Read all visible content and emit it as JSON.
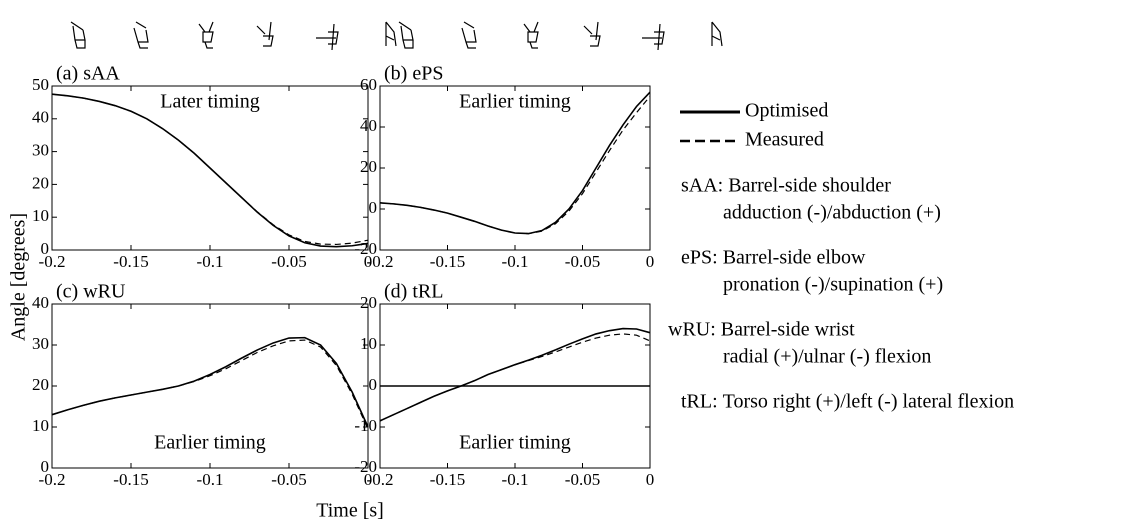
{
  "chart_data": [
    {
      "type": "line",
      "title": "(a) sAA",
      "annotation": "Later timing",
      "x": [
        -0.2,
        -0.19,
        -0.18,
        -0.17,
        -0.16,
        -0.15,
        -0.14,
        -0.13,
        -0.12,
        -0.11,
        -0.1,
        -0.09,
        -0.08,
        -0.07,
        -0.06,
        -0.05,
        -0.04,
        -0.03,
        -0.02,
        -0.01,
        0
      ],
      "xlim": [
        -0.2,
        0
      ],
      "xticks": [
        -0.2,
        -0.15,
        -0.1,
        -0.05,
        0
      ],
      "ylim": [
        0,
        50
      ],
      "yticks": [
        0,
        10,
        20,
        30,
        40,
        50
      ],
      "series": [
        {
          "style": "solid",
          "values": [
            47.5,
            47,
            46.3,
            45.3,
            44,
            42.3,
            40,
            37,
            33.5,
            29.5,
            25,
            20.5,
            16,
            11.5,
            7.5,
            4.3,
            2.2,
            1.2,
            1.0,
            1.3,
            2.0
          ]
        },
        {
          "style": "dashed",
          "values": [
            47.5,
            47,
            46.3,
            45.3,
            44,
            42.3,
            40,
            37,
            33.5,
            29.5,
            25,
            20.5,
            16,
            11.6,
            7.7,
            4.6,
            2.6,
            1.8,
            1.7,
            2.1,
            3.0
          ]
        }
      ]
    },
    {
      "type": "line",
      "title": "(b) ePS",
      "annotation": "Earlier timing",
      "x": [
        -0.2,
        -0.19,
        -0.18,
        -0.17,
        -0.16,
        -0.15,
        -0.14,
        -0.13,
        -0.12,
        -0.11,
        -0.1,
        -0.09,
        -0.08,
        -0.07,
        -0.06,
        -0.05,
        -0.04,
        -0.03,
        -0.02,
        -0.01,
        0
      ],
      "xlim": [
        -0.2,
        0
      ],
      "xticks": [
        -0.2,
        -0.15,
        -0.1,
        -0.05,
        0
      ],
      "ylim": [
        -20,
        60
      ],
      "yticks": [
        -20,
        0,
        20,
        40,
        60
      ],
      "series": [
        {
          "style": "solid",
          "values": [
            3,
            2.5,
            1.8,
            0.8,
            -0.5,
            -2,
            -4,
            -6,
            -8.3,
            -10.3,
            -11.7,
            -12,
            -10.5,
            -6.5,
            0,
            9,
            20,
            31,
            41,
            50,
            57
          ]
        },
        {
          "style": "dashed",
          "values": [
            3,
            2.5,
            1.8,
            0.8,
            -0.5,
            -2,
            -4,
            -6,
            -8.3,
            -10.3,
            -11.7,
            -12,
            -10.8,
            -7.2,
            -1,
            7.5,
            18,
            28.5,
            38.5,
            47,
            55
          ]
        }
      ]
    },
    {
      "type": "line",
      "title": "(c) wRU",
      "annotation": "Earlier timing",
      "x": [
        -0.2,
        -0.19,
        -0.18,
        -0.17,
        -0.16,
        -0.15,
        -0.14,
        -0.13,
        -0.12,
        -0.11,
        -0.1,
        -0.09,
        -0.08,
        -0.07,
        -0.06,
        -0.05,
        -0.04,
        -0.03,
        -0.02,
        -0.01,
        0
      ],
      "xlim": [
        -0.2,
        0
      ],
      "xticks": [
        -0.2,
        -0.15,
        -0.1,
        -0.05,
        0
      ],
      "ylim": [
        0,
        40
      ],
      "yticks": [
        0,
        10,
        20,
        30,
        40
      ],
      "series": [
        {
          "style": "solid",
          "values": [
            13,
            14.2,
            15.3,
            16.3,
            17.1,
            17.8,
            18.5,
            19.2,
            20,
            21.2,
            22.8,
            24.7,
            26.8,
            28.8,
            30.5,
            31.7,
            31.8,
            30,
            25.5,
            18.5,
            10
          ]
        },
        {
          "style": "dashed",
          "values": [
            13,
            14.2,
            15.3,
            16.3,
            17.1,
            17.8,
            18.5,
            19.2,
            20,
            21.1,
            22.5,
            24.2,
            26.2,
            28.2,
            29.8,
            31,
            31.2,
            29.5,
            25,
            18,
            9.5
          ]
        }
      ]
    },
    {
      "type": "line",
      "title": "(d) tRL",
      "annotation": "Earlier timing",
      "hline": 0,
      "x": [
        -0.2,
        -0.19,
        -0.18,
        -0.17,
        -0.16,
        -0.15,
        -0.14,
        -0.13,
        -0.12,
        -0.11,
        -0.1,
        -0.09,
        -0.08,
        -0.07,
        -0.06,
        -0.05,
        -0.04,
        -0.03,
        -0.02,
        -0.01,
        0
      ],
      "xlim": [
        -0.2,
        0
      ],
      "xticks": [
        -0.2,
        -0.15,
        -0.1,
        -0.05,
        0
      ],
      "ylim": [
        -20,
        20
      ],
      "yticks": [
        -20,
        -10,
        0,
        10,
        20
      ],
      "series": [
        {
          "style": "solid",
          "values": [
            -8.5,
            -7,
            -5.5,
            -4,
            -2.5,
            -1.2,
            0,
            1.3,
            2.8,
            4,
            5.2,
            6.3,
            7.5,
            8.8,
            10.2,
            11.5,
            12.7,
            13.5,
            14,
            13.9,
            13
          ]
        },
        {
          "style": "dashed",
          "values": [
            -8.5,
            -7,
            -5.5,
            -4,
            -2.5,
            -1.2,
            0,
            1.3,
            2.8,
            4,
            5.2,
            6.2,
            7.2,
            8.3,
            9.5,
            10.7,
            11.7,
            12.4,
            12.7,
            12.4,
            11
          ]
        }
      ]
    }
  ],
  "ylabel": "Angle [degrees]",
  "xlabel": "Time [s]",
  "legend": [
    {
      "label": "Optimised",
      "style": "solid"
    },
    {
      "label": "Measured",
      "style": "dashed"
    }
  ],
  "descriptions": [
    {
      "code": "sAA:",
      "lines": [
        "Barrel-side shoulder",
        "adduction (-)/abduction (+)"
      ]
    },
    {
      "code": "ePS:",
      "lines": [
        "Barrel-side elbow",
        "pronation (-)/supination (+)"
      ]
    },
    {
      "code": "wRU:",
      "lines": [
        "Barrel-side wrist",
        "radial (+)/ulnar (-) flexion"
      ]
    },
    {
      "code": "tRL:",
      "lines": [
        "Torso right (+)/left (-) lateral flexion"
      ]
    }
  ]
}
